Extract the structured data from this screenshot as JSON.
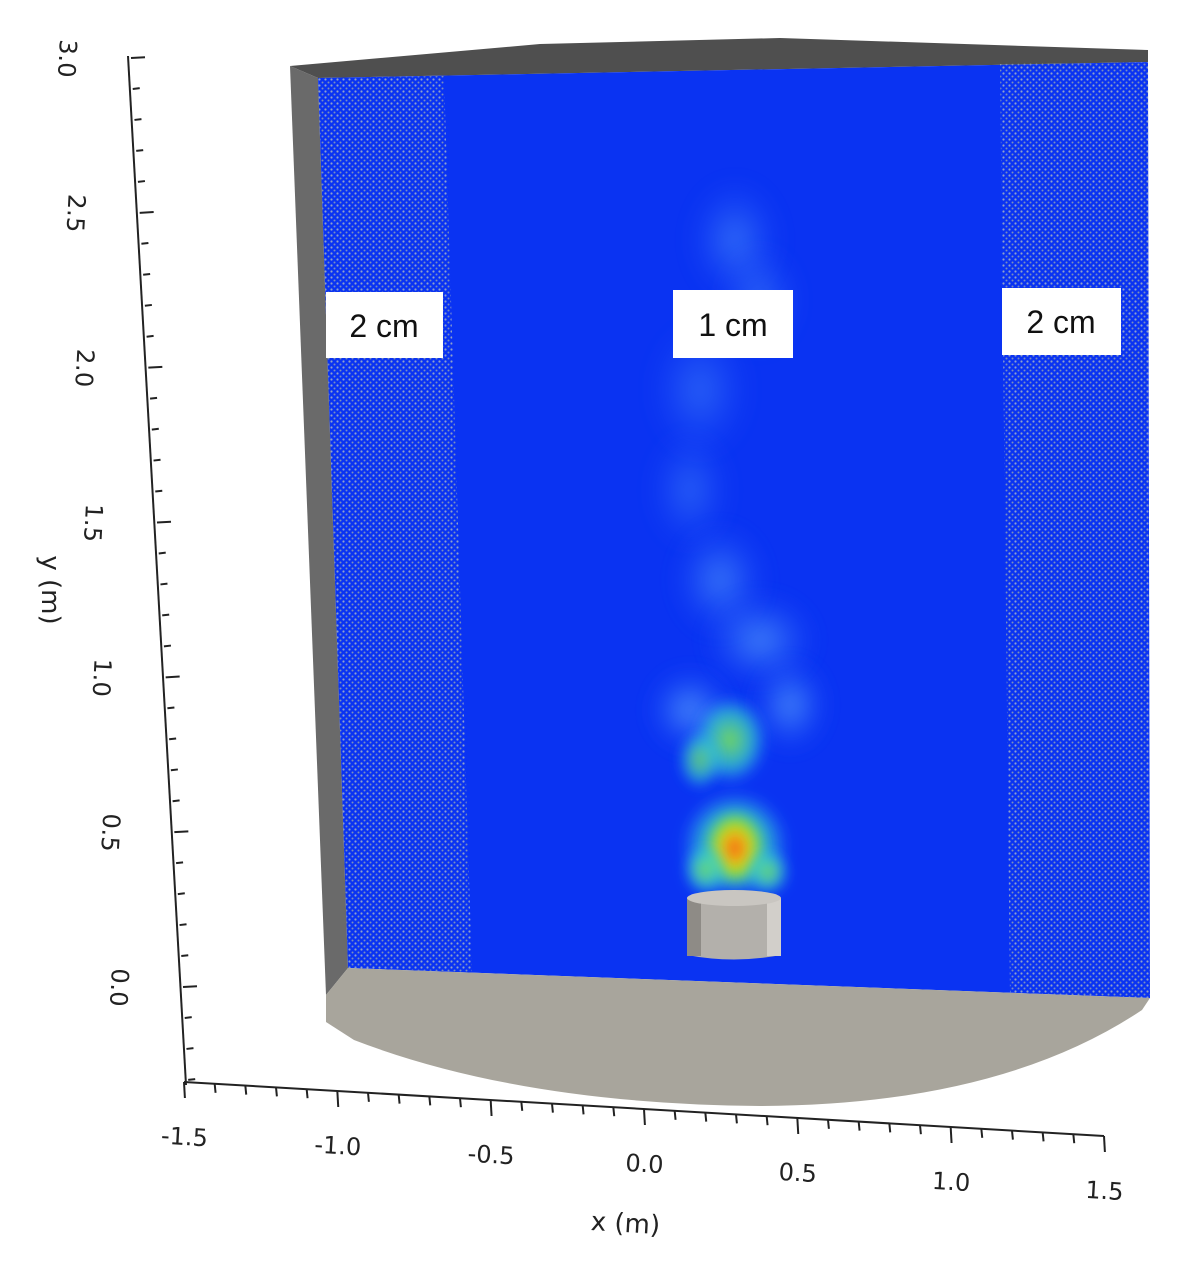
{
  "axes": {
    "x": {
      "title": "x (m)",
      "ticks": [
        "-1.5",
        "-1.0",
        "-0.5",
        "0.0",
        "0.5",
        "1.0",
        "1.5"
      ]
    },
    "y": {
      "title": "y (m)",
      "ticks": [
        "0.0",
        "0.5",
        "1.0",
        "1.5",
        "2.0",
        "2.5",
        "3.0"
      ]
    }
  },
  "regions": [
    {
      "label": "2 cm"
    },
    {
      "label": "1 cm"
    },
    {
      "label": "2 cm"
    }
  ],
  "colors": {
    "domain_blue": "#0a33f2",
    "wall_gray": "#6a6a6a",
    "floor_gray": "#a8a59c",
    "burner_gray": "#b3b0ab",
    "grid_dots": "#9aa8b8"
  }
}
